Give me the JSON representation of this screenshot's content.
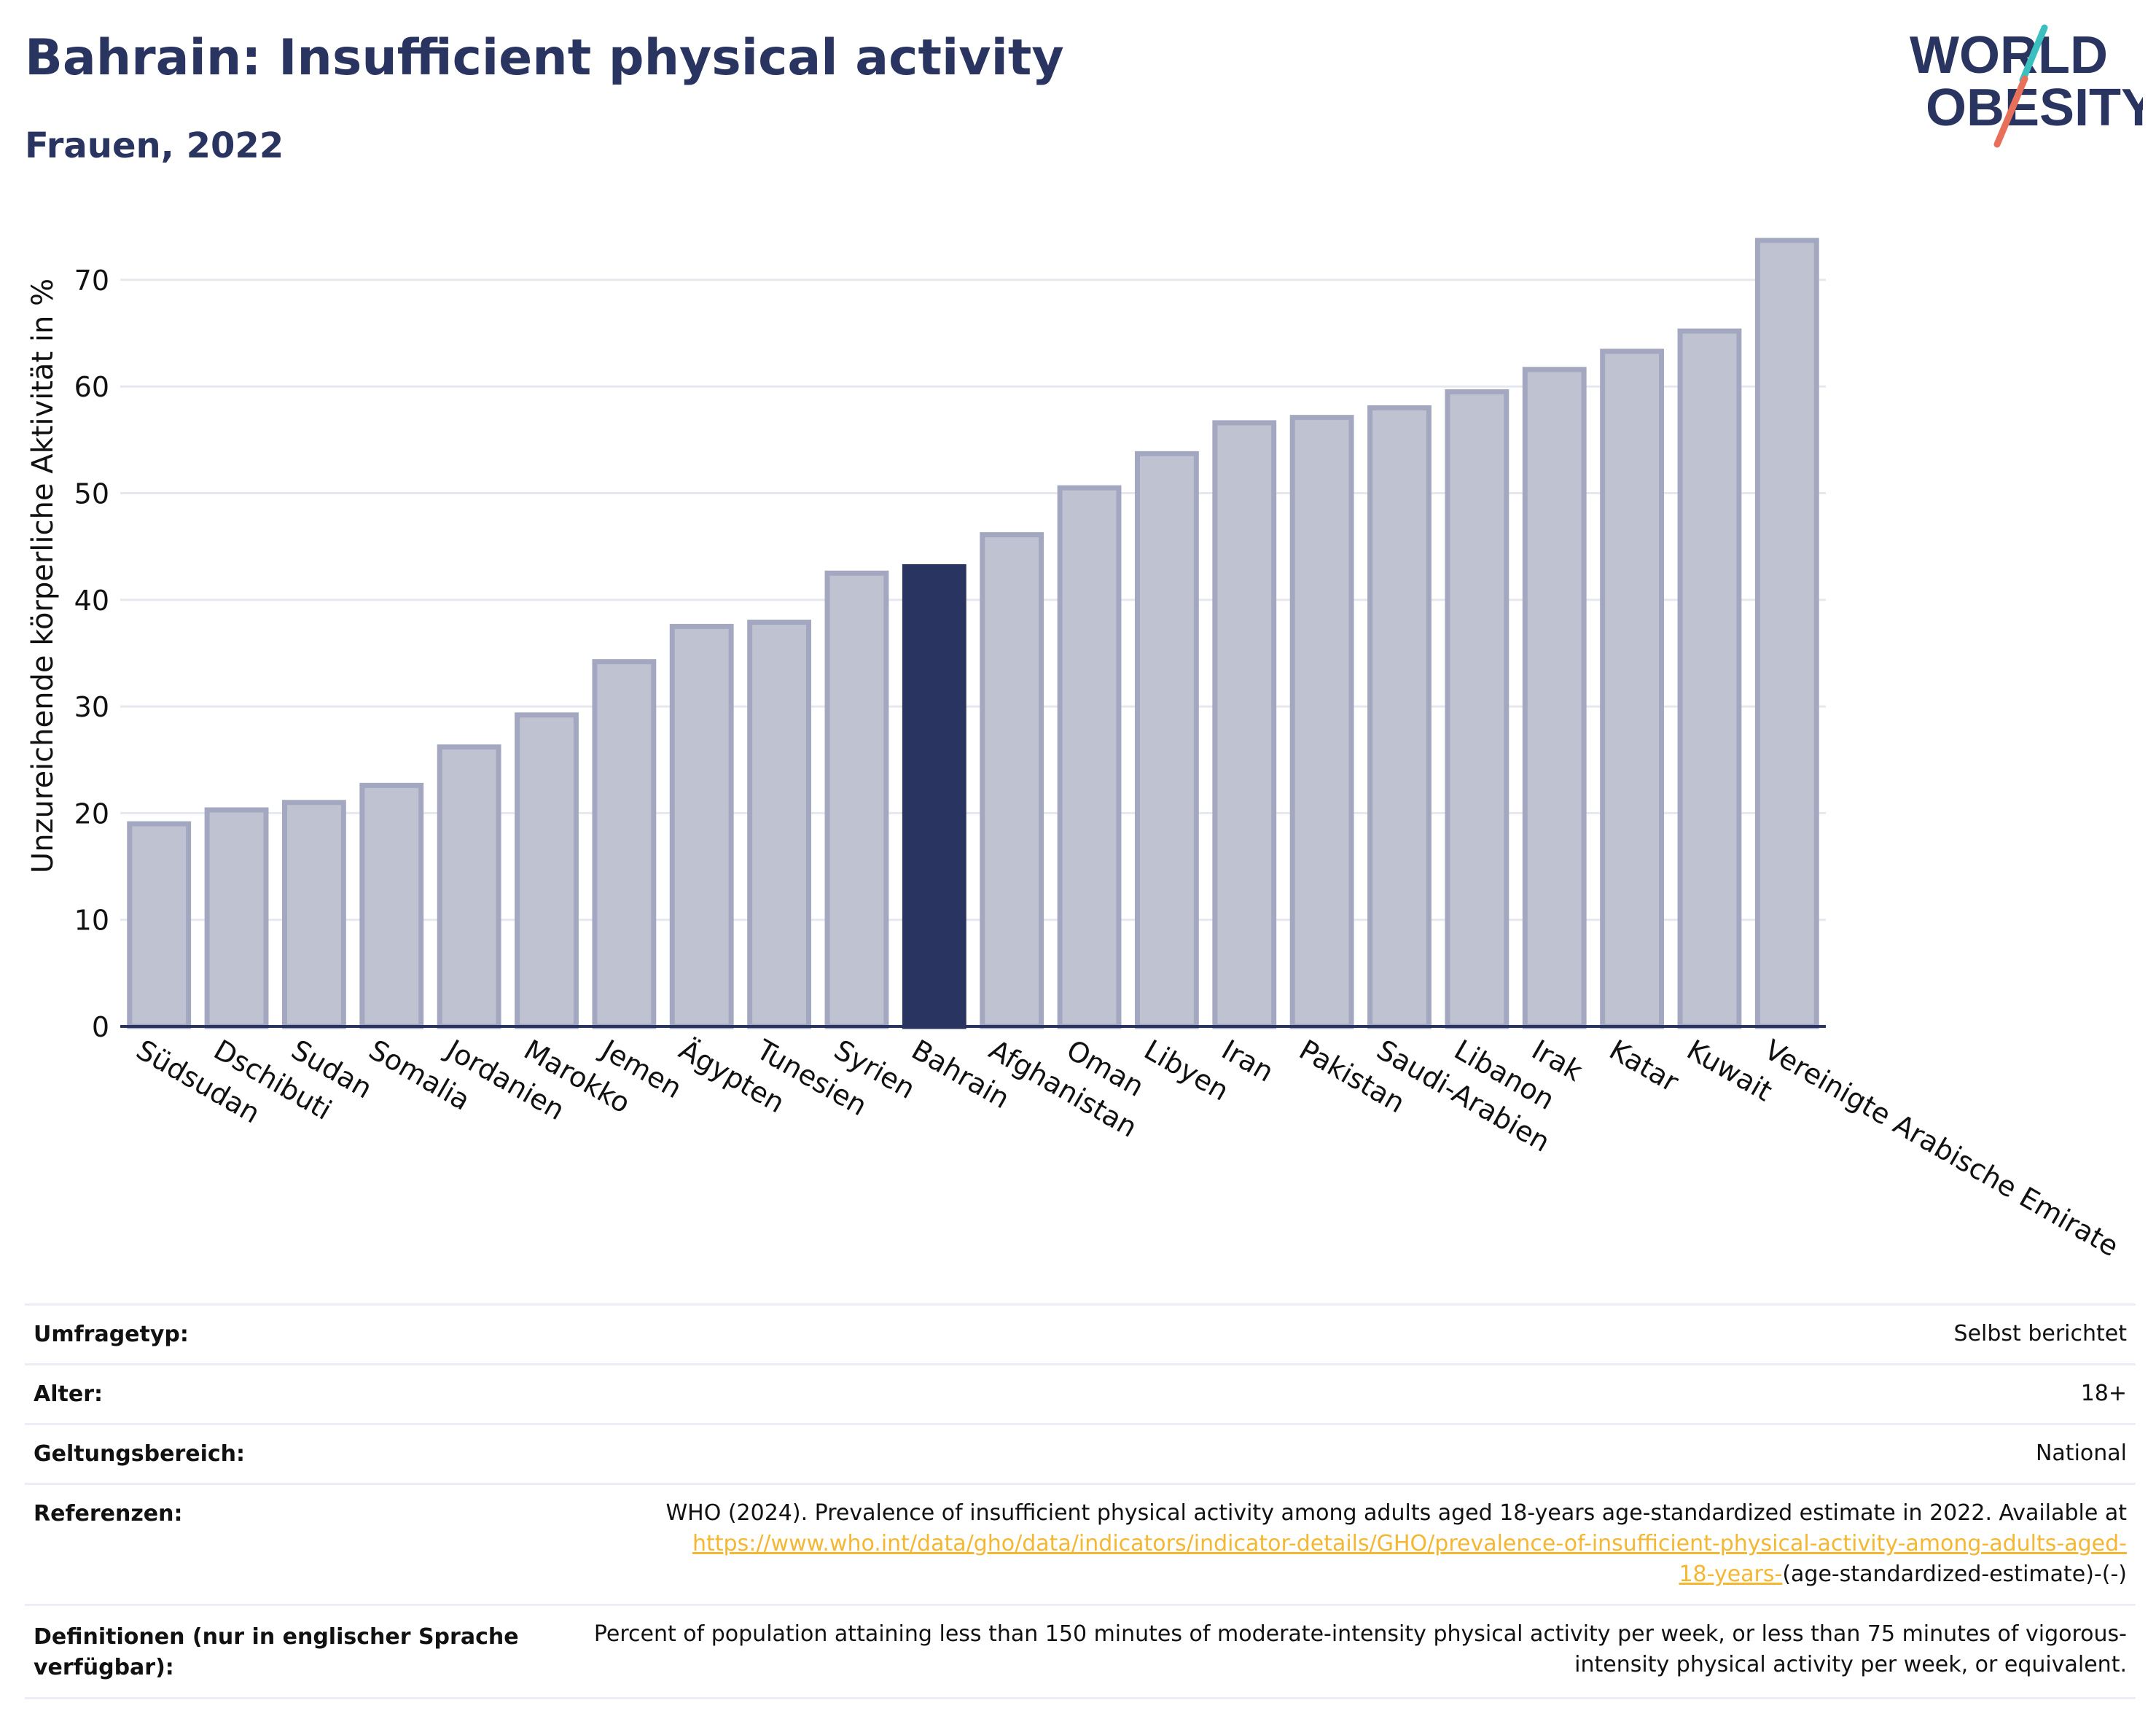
{
  "header": {
    "title": "Bahrain: Insufficient physical activity",
    "subtitle": "Frauen, 2022"
  },
  "logo": {
    "line1": "WORLD",
    "line2": "OBESITY",
    "text_color": "#2a3460",
    "accent_teal": "#3bbfbf",
    "accent_coral": "#e8705a"
  },
  "colors": {
    "bar": "#bfc2d0",
    "bar_border": "#a3a8c0",
    "highlight": "#2a3460",
    "grid": "#e6e8ef",
    "axis": "#2a3460"
  },
  "chart_data": {
    "type": "bar",
    "title": "Bahrain: Insufficient physical activity",
    "subtitle": "Frauen, 2022",
    "xlabel": "",
    "ylabel": "Unzureichende körperliche Aktivität in %",
    "ylim": [
      0,
      76
    ],
    "yticks": [
      0,
      10,
      20,
      30,
      40,
      50,
      60,
      70
    ],
    "grid": true,
    "highlight": "Bahrain",
    "categories": [
      "Südsudan",
      "Dschibuti",
      "Sudan",
      "Somalia",
      "Jordanien",
      "Marokko",
      "Jemen",
      "Ägypten",
      "Tunesien",
      "Syrien",
      "Bahrain",
      "Afghanistan",
      "Oman",
      "Libyen",
      "Iran",
      "Pakistan",
      "Saudi-Arabien",
      "Libanon",
      "Irak",
      "Katar",
      "Kuwait",
      "Vereinigte Arabische Emirate"
    ],
    "values": [
      19.0,
      20.3,
      21.0,
      22.6,
      26.2,
      29.2,
      34.2,
      37.5,
      37.9,
      42.5,
      43.1,
      46.1,
      50.5,
      53.7,
      56.6,
      57.1,
      58.0,
      59.5,
      61.6,
      63.3,
      65.2,
      73.7
    ]
  },
  "meta": {
    "survey_label": "Umfragetyp:",
    "survey_value": "Selbst berichtet",
    "age_label": "Alter:",
    "age_value": "18+",
    "scope_label": "Geltungsbereich:",
    "scope_value": "National",
    "ref_label": "Referenzen:",
    "ref_text": "WHO (2024). Prevalence of insufficient physical activity among adults aged 18-years age-standardized estimate in 2022. Available at",
    "ref_link_1": "https://www.who.int/data/gho/data/indicators/indicator-details/GHO/prevalence-of-insufficient-physical-activity-among-adults-aged-",
    "ref_link_2": "18-years-",
    "ref_suffix": "(age-standardized-estimate)-(-)",
    "def_label": "Definitionen (nur in englischer Sprache verfügbar):",
    "def_text": "Percent of population attaining less than 150 minutes of moderate-intensity physical activity per week, or less than 75 minutes of vigorous-intensity physical activity per week, or equivalent."
  }
}
